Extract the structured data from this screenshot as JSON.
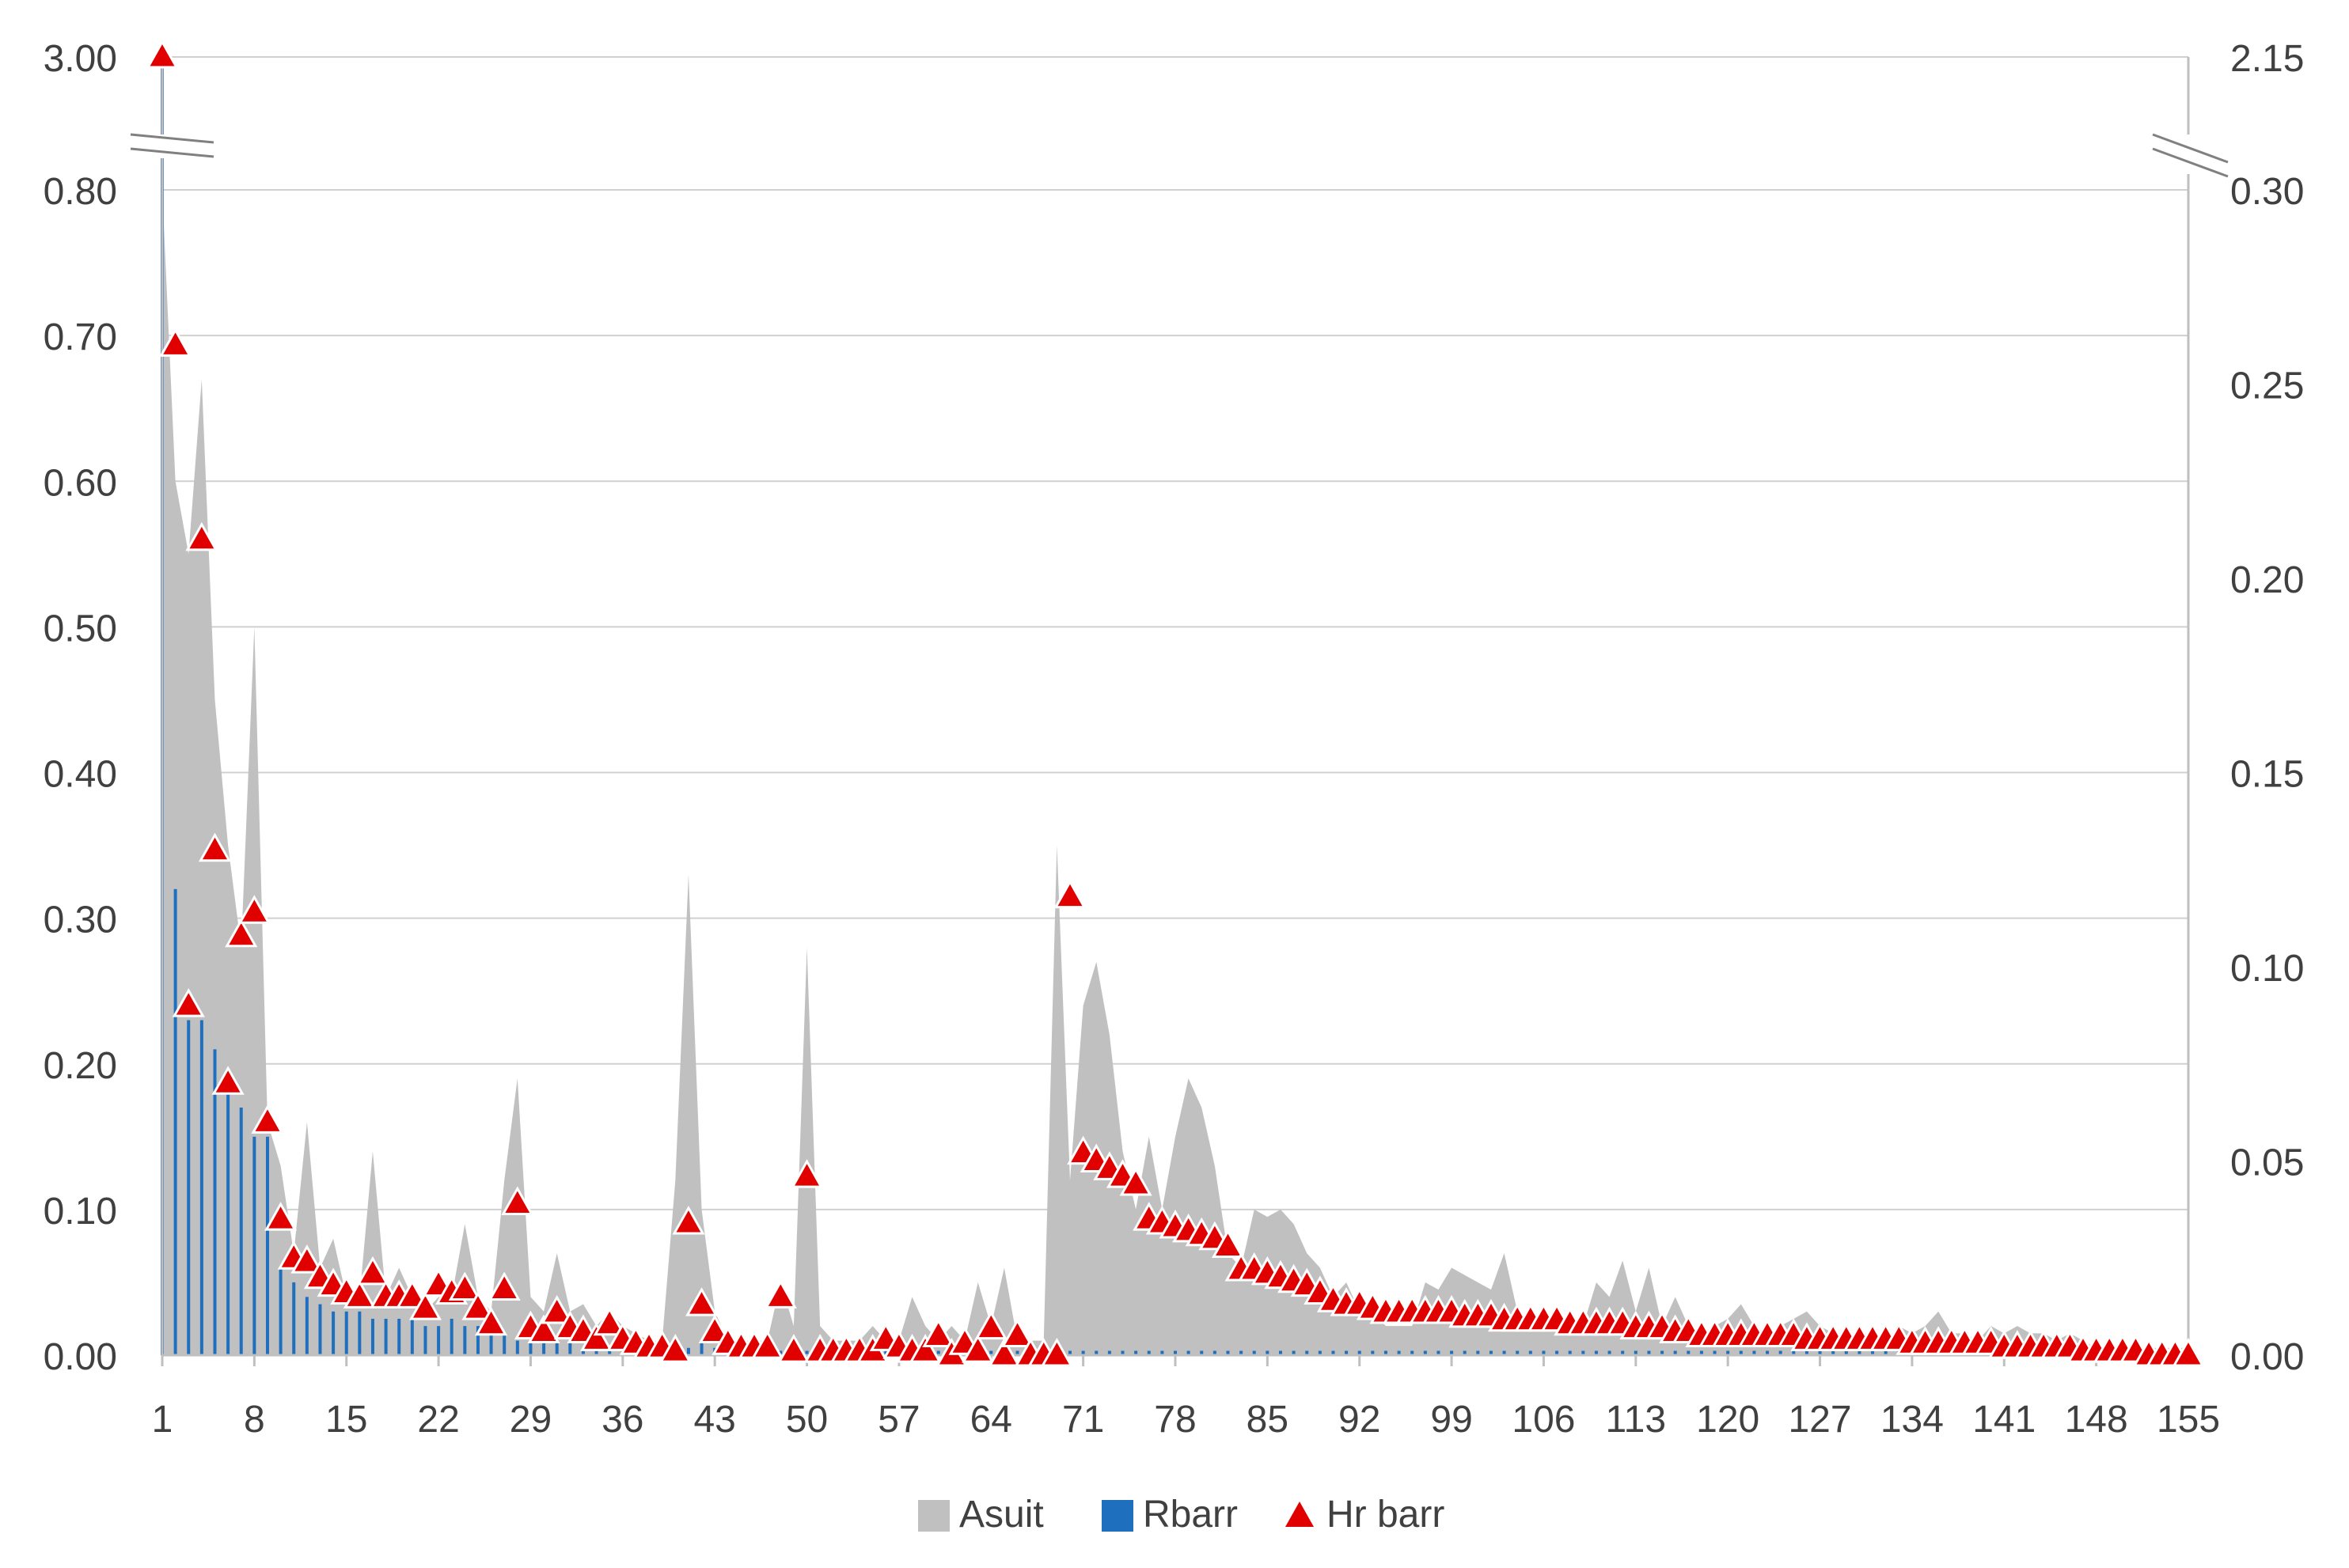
{
  "chart_data": {
    "type": "mixed",
    "title": "",
    "xlabel": "",
    "ylabel": "",
    "x": [
      1,
      2,
      3,
      4,
      5,
      6,
      7,
      8,
      9,
      10,
      11,
      12,
      13,
      14,
      15,
      16,
      17,
      18,
      19,
      20,
      21,
      22,
      23,
      24,
      25,
      26,
      27,
      28,
      29,
      30,
      31,
      32,
      33,
      34,
      35,
      36,
      37,
      38,
      39,
      40,
      41,
      42,
      43,
      44,
      45,
      46,
      47,
      48,
      49,
      50,
      51,
      52,
      53,
      54,
      55,
      56,
      57,
      58,
      59,
      60,
      61,
      62,
      63,
      64,
      65,
      66,
      67,
      68,
      69,
      70,
      71,
      72,
      73,
      74,
      75,
      76,
      77,
      78,
      79,
      80,
      81,
      82,
      83,
      84,
      85,
      86,
      87,
      88,
      89,
      90,
      91,
      92,
      93,
      94,
      95,
      96,
      97,
      98,
      99,
      100,
      101,
      102,
      103,
      104,
      105,
      106,
      107,
      108,
      109,
      110,
      111,
      112,
      113,
      114,
      115,
      116,
      117,
      118,
      119,
      120,
      121,
      122,
      123,
      124,
      125,
      126,
      127,
      128,
      129,
      130,
      131,
      132,
      133,
      134,
      135,
      136,
      137,
      138,
      139,
      140,
      141,
      142,
      143,
      144,
      145,
      146,
      147,
      148,
      149,
      150,
      151,
      152,
      153,
      154,
      155
    ],
    "x_tick_labels": [
      "1",
      "8",
      "15",
      "22",
      "29",
      "36",
      "43",
      "50",
      "57",
      "64",
      "71",
      "78",
      "85",
      "92",
      "99",
      "106",
      "113",
      "120",
      "127",
      "134",
      "141",
      "148",
      "155"
    ],
    "y_left_ticks": [
      "0.00",
      "0.10",
      "0.20",
      "0.30",
      "0.40",
      "0.50",
      "0.60",
      "0.70",
      "0.80"
    ],
    "y_left_break_label": "3.00",
    "y_right_ticks": [
      "0.00",
      "0.05",
      "0.10",
      "0.15",
      "0.20",
      "0.25",
      "0.30"
    ],
    "y_right_break_label": "2.15",
    "y_left_range": [
      0,
      0.8
    ],
    "y_right_range": [
      0,
      0.3
    ],
    "axis_break": true,
    "grid": true,
    "legend_position": "bottom",
    "series": [
      {
        "name": "Asuit",
        "type": "area",
        "axis": "left",
        "color": "#c0c0c0",
        "values": [
          0.8,
          0.6,
          0.55,
          0.67,
          0.45,
          0.35,
          0.28,
          0.5,
          0.16,
          0.13,
          0.07,
          0.16,
          0.06,
          0.08,
          0.04,
          0.04,
          0.14,
          0.04,
          0.06,
          0.04,
          0.03,
          0.04,
          0.04,
          0.09,
          0.04,
          0.03,
          0.12,
          0.19,
          0.04,
          0.03,
          0.07,
          0.03,
          0.035,
          0.02,
          0.03,
          0.02,
          0.015,
          0.01,
          0.01,
          0.12,
          0.33,
          0.1,
          0.03,
          0.01,
          0.01,
          0.01,
          0.01,
          0.05,
          0.02,
          0.28,
          0.02,
          0.01,
          0.01,
          0.01,
          0.02,
          0.01,
          0.01,
          0.04,
          0.02,
          0.01,
          0.02,
          0.01,
          0.05,
          0.02,
          0.06,
          0.01,
          0.01,
          0.01,
          0.35,
          0.12,
          0.24,
          0.27,
          0.22,
          0.14,
          0.1,
          0.15,
          0.1,
          0.15,
          0.19,
          0.17,
          0.13,
          0.07,
          0.06,
          0.1,
          0.095,
          0.1,
          0.09,
          0.07,
          0.06,
          0.04,
          0.05,
          0.03,
          0.03,
          0.02,
          0.02,
          0.02,
          0.05,
          0.045,
          0.06,
          0.055,
          0.05,
          0.045,
          0.07,
          0.03,
          0.02,
          0.02,
          0.02,
          0.03,
          0.02,
          0.05,
          0.04,
          0.065,
          0.03,
          0.06,
          0.02,
          0.04,
          0.02,
          0.015,
          0.02,
          0.025,
          0.035,
          0.02,
          0.015,
          0.02,
          0.025,
          0.03,
          0.02,
          0.015,
          0.015,
          0.015,
          0.015,
          0.01,
          0.02,
          0.015,
          0.02,
          0.03,
          0.015,
          0.015,
          0.01,
          0.02,
          0.015,
          0.02,
          0.015,
          0.015,
          0.01,
          0.015,
          0.01,
          0.005,
          0.005,
          0.005,
          0.005,
          0.005,
          0.005,
          0.005,
          0.005
        ]
      },
      {
        "name": "Rbarr",
        "type": "bar",
        "axis": "left",
        "color": "#1f6fbf",
        "values": [
          3.0,
          0.32,
          0.23,
          0.23,
          0.21,
          0.19,
          0.17,
          0.15,
          0.15,
          0.06,
          0.05,
          0.04,
          0.035,
          0.03,
          0.03,
          0.03,
          0.025,
          0.025,
          0.025,
          0.025,
          0.02,
          0.02,
          0.025,
          0.02,
          0.02,
          0.015,
          0.015,
          0.01,
          0.01,
          0.01,
          0.01,
          0.01,
          0.005,
          0.005,
          0.005,
          0.005,
          0.005,
          0.005,
          0.005,
          0.005,
          0.005,
          0.01,
          0.005,
          0.005,
          0.005,
          0.003,
          0.003,
          0.003,
          0.003,
          0.003,
          0.003,
          0.003,
          0.003,
          0.003,
          0.003,
          0.003,
          0.003,
          0.003,
          0.003,
          0.003,
          0.003,
          0.003,
          0.003,
          0.003,
          0.003,
          0.003,
          0.003,
          0.003,
          0.003,
          0.003,
          0.003,
          0.003,
          0.003,
          0.003,
          0.003,
          0.003,
          0.003,
          0.003,
          0.003,
          0.003,
          0.003,
          0.003,
          0.003,
          0.003,
          0.003,
          0.003,
          0.003,
          0.003,
          0.003,
          0.003,
          0.003,
          0.003,
          0.003,
          0.003,
          0.003,
          0.003,
          0.003,
          0.003,
          0.003,
          0.003,
          0.003,
          0.003,
          0.003,
          0.003,
          0.003,
          0.003,
          0.003,
          0.003,
          0.003,
          0.003,
          0.003,
          0.003,
          0.003,
          0.003,
          0.003,
          0.003,
          0.003,
          0.003,
          0.003,
          0.003,
          0.003,
          0.003,
          0.003,
          0.003,
          0.003,
          0.003,
          0.003,
          0.003,
          0.003,
          0.003,
          0.003,
          0.003,
          0.003,
          0.003,
          0.003,
          0.003,
          0.003,
          0.003,
          0.003,
          0.003,
          0.003,
          0.003,
          0.003,
          0.003,
          0.003,
          0.003,
          0.003,
          0.003,
          0.003,
          0.003,
          0.003,
          0.003,
          0.003,
          0.003,
          0.003
        ]
      },
      {
        "name": "Hr barr",
        "type": "scatter",
        "axis": "right",
        "color": "#e00000",
        "values": [
          2.15,
          0.26,
          0.09,
          0.21,
          0.13,
          0.07,
          0.108,
          0.114,
          0.06,
          0.035,
          0.025,
          0.024,
          0.02,
          0.018,
          0.016,
          0.015,
          0.021,
          0.015,
          0.015,
          0.015,
          0.012,
          0.018,
          0.016,
          0.017,
          0.012,
          0.008,
          0.017,
          0.039,
          0.007,
          0.006,
          0.011,
          0.007,
          0.006,
          0.004,
          0.008,
          0.004,
          0.003,
          0.002,
          0.002,
          0.001,
          0.034,
          0.013,
          0.006,
          0.003,
          0.002,
          0.002,
          0.002,
          0.015,
          0.001,
          0.046,
          0.001,
          0.001,
          0.001,
          0.001,
          0.001,
          0.004,
          0.002,
          0.001,
          0.001,
          0.005,
          0.0,
          0.003,
          0.001,
          0.007,
          0.0,
          0.005,
          0.0,
          0.0,
          0.0,
          0.118,
          0.052,
          0.05,
          0.048,
          0.046,
          0.044,
          0.035,
          0.034,
          0.033,
          0.032,
          0.031,
          0.03,
          0.028,
          0.022,
          0.022,
          0.021,
          0.02,
          0.019,
          0.018,
          0.016,
          0.014,
          0.013,
          0.013,
          0.012,
          0.011,
          0.011,
          0.011,
          0.011,
          0.011,
          0.011,
          0.01,
          0.01,
          0.01,
          0.009,
          0.009,
          0.009,
          0.009,
          0.009,
          0.008,
          0.008,
          0.008,
          0.008,
          0.008,
          0.007,
          0.007,
          0.007,
          0.006,
          0.006,
          0.005,
          0.005,
          0.005,
          0.005,
          0.005,
          0.005,
          0.005,
          0.005,
          0.004,
          0.004,
          0.004,
          0.004,
          0.004,
          0.004,
          0.004,
          0.004,
          0.003,
          0.003,
          0.003,
          0.003,
          0.003,
          0.003,
          0.003,
          0.002,
          0.002,
          0.002,
          0.002,
          0.002,
          0.002,
          0.001,
          0.001,
          0.001,
          0.001,
          0.001,
          0.0,
          0.0,
          0.0,
          0.0
        ]
      }
    ]
  }
}
